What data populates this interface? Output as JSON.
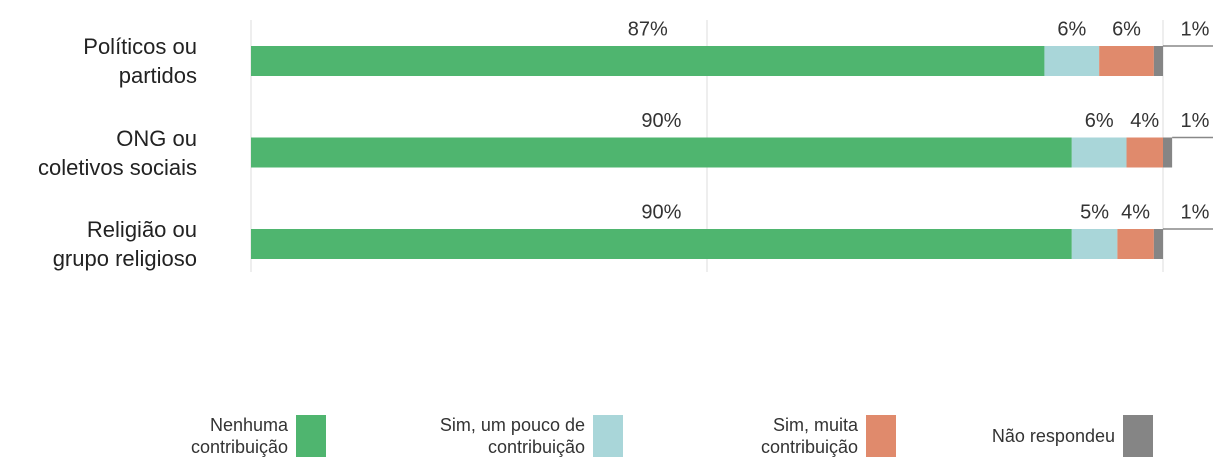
{
  "chart_data": {
    "type": "stacked_bar_horizontal",
    "categories": [
      "Políticos ou\npartidos",
      "ONG ou\ncoletivos sociais",
      "Religião ou\ngrupo religioso"
    ],
    "series": [
      {
        "name": "Nenhuma\ncontribuição",
        "color": "#4fb56f",
        "values": [
          87,
          90,
          90
        ],
        "value_labels": [
          "87%",
          "90%",
          "90%"
        ]
      },
      {
        "name": "Sim, um pouco de\ncontribuição",
        "color": "#a9d6d9",
        "values": [
          6,
          6,
          5
        ],
        "value_labels": [
          "6%",
          "6%",
          "5%"
        ]
      },
      {
        "name": "Sim, muita\ncontribuição",
        "color": "#e08a6c",
        "values": [
          6,
          4,
          4
        ],
        "value_labels": [
          "6%",
          "4%",
          "4%"
        ]
      },
      {
        "name": "Não respondeu",
        "color": "#858585",
        "values": [
          1,
          1,
          1
        ],
        "value_labels": [
          "1%",
          "1%",
          "1%"
        ]
      }
    ],
    "xlim": [
      0,
      100
    ],
    "xticks": [
      0,
      50,
      100
    ],
    "grid": true,
    "legend": "bottom"
  }
}
